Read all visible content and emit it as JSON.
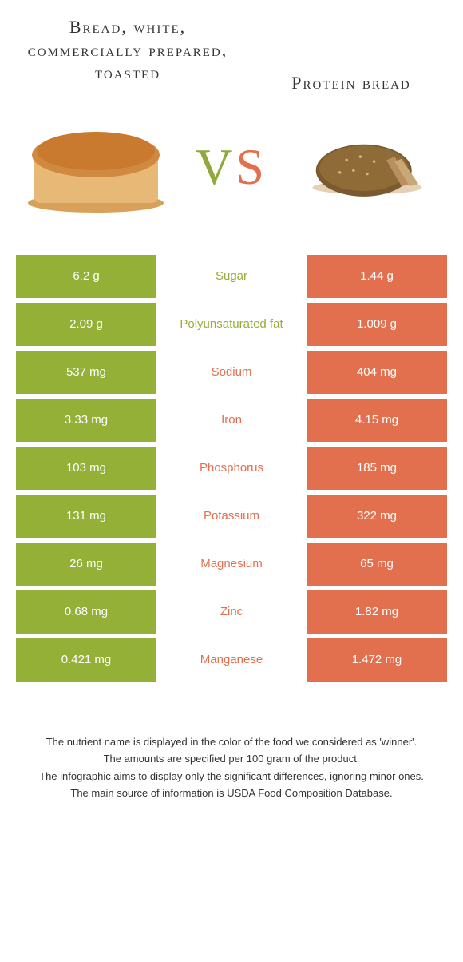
{
  "colors": {
    "left": "#94b037",
    "right": "#e2704e",
    "bg": "#ffffff",
    "text": "#333333"
  },
  "header": {
    "left_title": "Bread, white, commercially prepared, toasted",
    "right_title": "Protein bread",
    "vs_v": "V",
    "vs_s": "S"
  },
  "rows": [
    {
      "left": "6.2 g",
      "label": "Sugar",
      "right": "1.44 g",
      "winner": "left"
    },
    {
      "left": "2.09 g",
      "label": "Polyunsaturated fat",
      "right": "1.009 g",
      "winner": "left"
    },
    {
      "left": "537 mg",
      "label": "Sodium",
      "right": "404 mg",
      "winner": "right"
    },
    {
      "left": "3.33 mg",
      "label": "Iron",
      "right": "4.15 mg",
      "winner": "right"
    },
    {
      "left": "103 mg",
      "label": "Phosphorus",
      "right": "185 mg",
      "winner": "right"
    },
    {
      "left": "131 mg",
      "label": "Potassium",
      "right": "322 mg",
      "winner": "right"
    },
    {
      "left": "26 mg",
      "label": "Magnesium",
      "right": "65 mg",
      "winner": "right"
    },
    {
      "left": "0.68 mg",
      "label": "Zinc",
      "right": "1.82 mg",
      "winner": "right"
    },
    {
      "left": "0.421 mg",
      "label": "Manganese",
      "right": "1.472 mg",
      "winner": "right"
    }
  ],
  "footnotes": [
    "The nutrient name is displayed in the color of the food we considered as 'winner'.",
    "The amounts are specified per 100 gram of the product.",
    "The infographic aims to display only the significant differences, ignoring minor ones.",
    "The main source of information is USDA Food Composition Database."
  ]
}
